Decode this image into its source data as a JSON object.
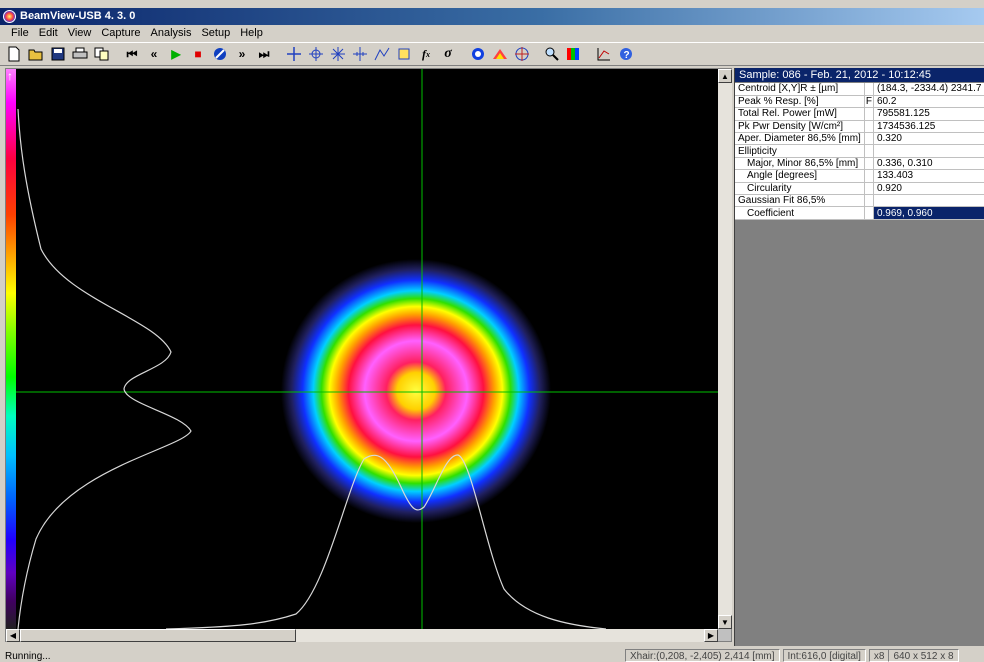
{
  "window": {
    "title": "BeamView-USB 4. 3. 0"
  },
  "menu": [
    "File",
    "Edit",
    "View",
    "Capture",
    "Analysis",
    "Setup",
    "Help"
  ],
  "toolbar": {
    "icons": [
      "new-file-icon",
      "open-folder-icon",
      "save-icon",
      "print-icon",
      "copy-icon",
      "skip-first-icon",
      "step-back-icon",
      "play-icon",
      "stop-icon",
      "no-entry-icon",
      "step-forward-icon",
      "skip-last-icon",
      "crosshair-icon",
      "target-icon",
      "compass-icon",
      "cross-ticks-icon",
      "profile-icon",
      "crop-icon",
      "function-icon",
      "sigma-icon",
      "ring-icon",
      "beam-3d-icon",
      "grid-target-icon",
      "zoom-icon",
      "palette-icon",
      "graph-icon",
      "help-icon"
    ]
  },
  "panel": {
    "header": "Sample: 086  -  Feb. 21, 2012  -  10:12:45",
    "rows": [
      {
        "label": "Centroid [X,Y]R ± [µm]",
        "flag": "",
        "value": "(184.3, -2334.4) 2341.7"
      },
      {
        "label": "Peak % Resp. [%]",
        "flag": "F",
        "value": "60.2"
      },
      {
        "label": "Total Rel. Power [mW]",
        "flag": "",
        "value": "795581.125"
      },
      {
        "label": "Pk Pwr Density [W/cm²]",
        "flag": "",
        "value": "1734536.125"
      },
      {
        "label": "Aper. Diameter 86,5% [mm]",
        "flag": "",
        "value": "0.320"
      },
      {
        "label": "Ellipticity",
        "flag": "",
        "value": ""
      },
      {
        "label": "Major, Minor 86,5% [mm]",
        "flag": "",
        "value": "0.336, 0.310",
        "indent": true
      },
      {
        "label": "Angle [degrees]",
        "flag": "",
        "value": "133.403",
        "indent": true
      },
      {
        "label": "Circularity",
        "flag": "",
        "value": "0.920",
        "indent": true
      },
      {
        "label": "Gaussian Fit 86,5%",
        "flag": "",
        "value": ""
      },
      {
        "label": "Coefficient",
        "flag": "",
        "value": "0.969, 0.960",
        "indent": true,
        "selected": true
      }
    ]
  },
  "status": {
    "state": "Running...",
    "crosshair": "Xhair:(0,208, -2,405) 2,414 [mm]",
    "intensity": "Int:616,0 [digital]",
    "zoom": "x8",
    "resolution": "640 x 512 x 8"
  },
  "colors": {
    "crosshair": "#00c000",
    "profile": "#d8d8d8",
    "selection": "#0a246a"
  }
}
